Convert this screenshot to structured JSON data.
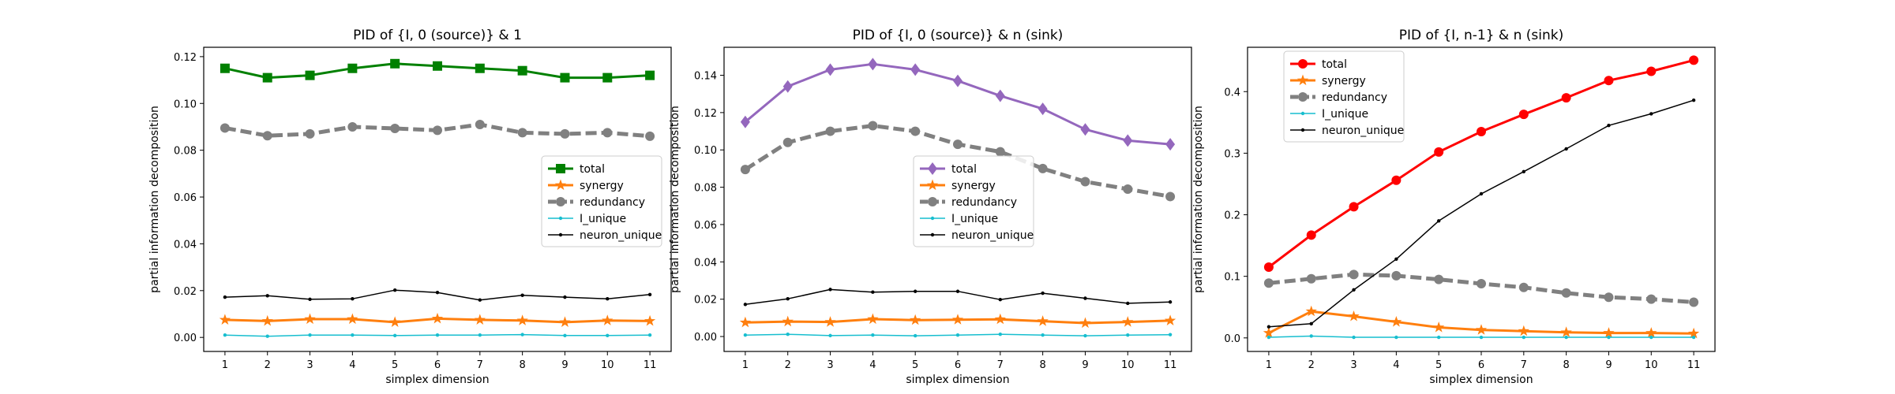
{
  "chart_data": [
    {
      "type": "line",
      "title": "PID of {I, 0 (source)} & 1",
      "xlabel": "simplex dimension",
      "ylabel": "partial information decomposition",
      "x": [
        1,
        2,
        3,
        4,
        5,
        6,
        7,
        8,
        9,
        10,
        11
      ],
      "xlim": [
        0.5,
        11.5
      ],
      "ylim": [
        -0.006,
        0.124
      ],
      "yticks": [
        0.0,
        0.02,
        0.04,
        0.06,
        0.08,
        0.1,
        0.12
      ],
      "ytick_labels": [
        "0.00",
        "0.02",
        "0.04",
        "0.06",
        "0.08",
        "0.10",
        "0.12"
      ],
      "legend_position": "center-right",
      "series": [
        {
          "name": "total",
          "color": "#008000",
          "marker": "square",
          "linewidth": 3,
          "dash": "",
          "values": [
            0.115,
            0.111,
            0.112,
            0.115,
            0.117,
            0.116,
            0.115,
            0.114,
            0.111,
            0.111,
            0.112
          ]
        },
        {
          "name": "synergy",
          "color": "#ff7f0e",
          "marker": "star",
          "linewidth": 3,
          "dash": "",
          "values": [
            0.0075,
            0.007,
            0.0078,
            0.0078,
            0.0065,
            0.008,
            0.0075,
            0.0072,
            0.0065,
            0.0072,
            0.007
          ]
        },
        {
          "name": "redundancy",
          "color": "#808080",
          "marker": "circle",
          "linewidth": 5,
          "dash": "14,6",
          "values": [
            0.0895,
            0.0862,
            0.087,
            0.09,
            0.0893,
            0.0885,
            0.091,
            0.0875,
            0.087,
            0.0875,
            0.086
          ]
        },
        {
          "name": "I_unique",
          "color": "#17becf",
          "marker": "small",
          "linewidth": 1.5,
          "dash": "",
          "values": [
            0.001,
            0.0005,
            0.001,
            0.001,
            0.0008,
            0.001,
            0.001,
            0.0012,
            0.0008,
            0.0008,
            0.001
          ]
        },
        {
          "name": "neuron_unique",
          "color": "#000000",
          "marker": "small",
          "linewidth": 1.5,
          "dash": "",
          "values": [
            0.0172,
            0.0178,
            0.0163,
            0.0165,
            0.0202,
            0.0192,
            0.016,
            0.018,
            0.0172,
            0.0165,
            0.0183
          ]
        }
      ]
    },
    {
      "type": "line",
      "title": "PID of {I, 0 (source)} & n (sink)",
      "xlabel": "simplex dimension",
      "ylabel": "partial information decomposition",
      "x": [
        1,
        2,
        3,
        4,
        5,
        6,
        7,
        8,
        9,
        10,
        11
      ],
      "xlim": [
        0.5,
        11.5
      ],
      "ylim": [
        -0.008,
        0.155
      ],
      "yticks": [
        0.0,
        0.02,
        0.04,
        0.06,
        0.08,
        0.1,
        0.12,
        0.14
      ],
      "ytick_labels": [
        "0.00",
        "0.02",
        "0.04",
        "0.06",
        "0.08",
        "0.10",
        "0.12",
        "0.14"
      ],
      "legend_position": "center",
      "series": [
        {
          "name": "total",
          "color": "#9467bd",
          "marker": "diamond",
          "linewidth": 3,
          "dash": "",
          "values": [
            0.115,
            0.134,
            0.143,
            0.146,
            0.143,
            0.137,
            0.129,
            0.122,
            0.111,
            0.105,
            0.103
          ]
        },
        {
          "name": "synergy",
          "color": "#ff7f0e",
          "marker": "star",
          "linewidth": 3,
          "dash": "",
          "values": [
            0.0075,
            0.008,
            0.0078,
            0.0093,
            0.0088,
            0.009,
            0.0092,
            0.0082,
            0.0072,
            0.0078,
            0.0085
          ]
        },
        {
          "name": "redundancy",
          "color": "#808080",
          "marker": "circle",
          "linewidth": 5,
          "dash": "14,6",
          "values": [
            0.0895,
            0.104,
            0.11,
            0.113,
            0.11,
            0.103,
            0.099,
            0.09,
            0.083,
            0.079,
            0.075
          ]
        },
        {
          "name": "I_unique",
          "color": "#17becf",
          "marker": "small",
          "linewidth": 1.5,
          "dash": "",
          "values": [
            0.0008,
            0.0012,
            0.0005,
            0.0008,
            0.0004,
            0.0008,
            0.0012,
            0.0008,
            0.0004,
            0.0008,
            0.001
          ]
        },
        {
          "name": "neuron_unique",
          "color": "#000000",
          "marker": "small",
          "linewidth": 1.5,
          "dash": "",
          "values": [
            0.0172,
            0.0202,
            0.0252,
            0.0238,
            0.0242,
            0.0242,
            0.0198,
            0.0232,
            0.0205,
            0.0178,
            0.0185
          ]
        }
      ]
    },
    {
      "type": "line",
      "title": "PID of {I, n-1} & n (sink)",
      "xlabel": "simplex dimension",
      "ylabel": "partial information decomposition",
      "x": [
        1,
        2,
        3,
        4,
        5,
        6,
        7,
        8,
        9,
        10,
        11
      ],
      "xlim": [
        0.5,
        11.5
      ],
      "ylim": [
        -0.022,
        0.472
      ],
      "yticks": [
        0.0,
        0.1,
        0.2,
        0.3,
        0.4
      ],
      "ytick_labels": [
        "0.0",
        "0.1",
        "0.2",
        "0.3",
        "0.4"
      ],
      "legend_position": "top-left",
      "series": [
        {
          "name": "total",
          "color": "#ff0000",
          "marker": "circle",
          "linewidth": 3,
          "dash": "",
          "values": [
            0.115,
            0.167,
            0.213,
            0.256,
            0.302,
            0.335,
            0.363,
            0.39,
            0.418,
            0.433,
            0.451
          ]
        },
        {
          "name": "synergy",
          "color": "#ff7f0e",
          "marker": "star",
          "linewidth": 3,
          "dash": "",
          "values": [
            0.008,
            0.043,
            0.035,
            0.026,
            0.017,
            0.013,
            0.011,
            0.009,
            0.008,
            0.008,
            0.007
          ]
        },
        {
          "name": "redundancy",
          "color": "#808080",
          "marker": "circle",
          "linewidth": 5,
          "dash": "14,6",
          "values": [
            0.089,
            0.096,
            0.103,
            0.101,
            0.095,
            0.088,
            0.082,
            0.073,
            0.066,
            0.063,
            0.058
          ]
        },
        {
          "name": "I_unique",
          "color": "#17becf",
          "marker": "small",
          "linewidth": 1.5,
          "dash": "",
          "values": [
            0.001,
            0.003,
            0.001,
            0.001,
            0.001,
            0.001,
            0.001,
            0.001,
            0.001,
            0.001,
            0.001
          ]
        },
        {
          "name": "neuron_unique",
          "color": "#000000",
          "marker": "small",
          "linewidth": 1.5,
          "dash": "",
          "values": [
            0.018,
            0.023,
            0.078,
            0.128,
            0.19,
            0.234,
            0.27,
            0.307,
            0.345,
            0.364,
            0.386
          ]
        }
      ]
    }
  ]
}
